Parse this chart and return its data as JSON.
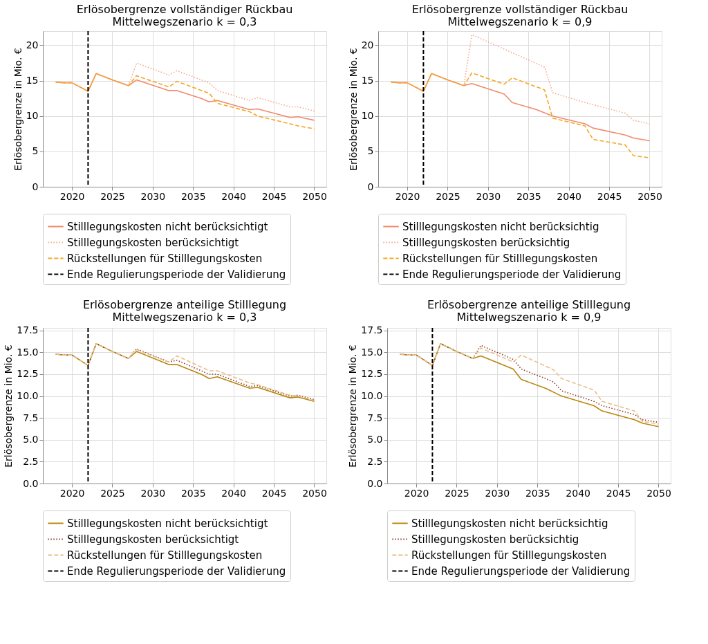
{
  "chart_data": [
    {
      "type": "line",
      "title": "Erlösobergrenze vollständiger Rückbau",
      "subtitle": "Mittelwegszenario k = 0,3",
      "ylabel": "Erlösobergrenze in Mio. €",
      "xlim": [
        2016.4,
        2051.5
      ],
      "ylim": [
        0,
        22
      ],
      "xticks": [
        2020,
        2025,
        2030,
        2035,
        2040,
        2045,
        2050
      ],
      "yticks": [
        0,
        5,
        10,
        15,
        20
      ],
      "grid": true,
      "legend": "bottom",
      "marker": "none",
      "series": [
        {
          "name": "Stilllegungskosten nicht berücksichtigt",
          "color": "#f08a6b",
          "line_style": "solid",
          "x": [
            2018,
            2019,
            2020,
            2022,
            2023,
            2025,
            2027,
            2028,
            2032,
            2033,
            2036,
            2037,
            2038,
            2042,
            2043,
            2047,
            2048,
            2050
          ],
          "values": [
            14.8,
            14.7,
            14.7,
            13.5,
            16.0,
            15.1,
            14.3,
            15.1,
            13.6,
            13.6,
            12.5,
            12.0,
            12.2,
            10.9,
            11.0,
            9.8,
            9.9,
            9.4
          ]
        },
        {
          "name": "Stilllegungskosten berücksichtigt",
          "color": "#f5a58a",
          "line_style": "dotted",
          "x": [
            2018,
            2019,
            2020,
            2022,
            2023,
            2025,
            2027,
            2028,
            2032,
            2033,
            2037,
            2038,
            2042,
            2043,
            2047,
            2048,
            2050
          ],
          "values": [
            14.8,
            14.7,
            14.7,
            13.5,
            16.0,
            15.1,
            14.3,
            17.5,
            15.8,
            16.4,
            14.7,
            13.6,
            12.2,
            12.6,
            11.3,
            11.3,
            10.7
          ]
        },
        {
          "name": "Rückstellungen für Stilllegungskosten",
          "color": "#f5a623",
          "line_style": "dashed",
          "x": [
            2018,
            2019,
            2020,
            2022,
            2023,
            2025,
            2027,
            2028,
            2032,
            2033,
            2037,
            2038,
            2042,
            2043,
            2047,
            2048,
            2050
          ],
          "values": [
            14.8,
            14.7,
            14.7,
            13.5,
            16.0,
            15.1,
            14.3,
            15.7,
            14.1,
            14.9,
            13.2,
            11.8,
            10.6,
            10.0,
            8.9,
            8.6,
            8.2
          ]
        }
      ],
      "ref_lines": [
        {
          "axis": "x",
          "value": 2022,
          "label": "Ende Regulierungsperiode der Validierung",
          "color": "#000000",
          "line_style": "dashed"
        }
      ]
    },
    {
      "type": "line",
      "title": "Erlösobergrenze vollständiger Rückbau",
      "subtitle": "Mittelwegszenario k = 0,9",
      "ylabel": "Erlösobergrenze in Mio. €",
      "xlim": [
        2016.4,
        2051.5
      ],
      "ylim": [
        0,
        22
      ],
      "xticks": [
        2020,
        2025,
        2030,
        2035,
        2040,
        2045,
        2050
      ],
      "yticks": [
        0,
        5,
        10,
        15,
        20
      ],
      "grid": true,
      "legend": "bottom",
      "marker": "none",
      "series": [
        {
          "name": "Stilllegungskosten nicht berücksichtig",
          "color": "#f08a6b",
          "line_style": "solid",
          "x": [
            2018,
            2019,
            2020,
            2022,
            2023,
            2025,
            2027,
            2028,
            2032,
            2033,
            2036,
            2038,
            2042,
            2043,
            2047,
            2048,
            2050
          ],
          "values": [
            14.8,
            14.7,
            14.7,
            13.5,
            16.0,
            15.1,
            14.3,
            14.6,
            13.1,
            11.9,
            10.9,
            10.0,
            8.9,
            8.3,
            7.3,
            6.9,
            6.5
          ]
        },
        {
          "name": "Stilllegungskosten berücksichtig",
          "color": "#f5a58a",
          "line_style": "dotted",
          "x": [
            2018,
            2019,
            2020,
            2022,
            2023,
            2025,
            2027,
            2028,
            2037,
            2038,
            2042,
            2047,
            2048,
            2050
          ],
          "values": [
            14.8,
            14.7,
            14.7,
            13.5,
            16.0,
            15.1,
            14.3,
            21.5,
            16.9,
            13.3,
            11.9,
            10.4,
            9.4,
            8.9
          ]
        },
        {
          "name": "Rückstellungen für Stilllegungskosten",
          "color": "#f5a623",
          "line_style": "dashed",
          "x": [
            2018,
            2019,
            2020,
            2022,
            2023,
            2025,
            2027,
            2028,
            2032,
            2033,
            2037,
            2038,
            2042,
            2043,
            2047,
            2048,
            2050
          ],
          "values": [
            14.8,
            14.7,
            14.7,
            13.5,
            16.0,
            15.1,
            14.3,
            16.1,
            14.5,
            15.4,
            13.7,
            9.7,
            8.6,
            6.7,
            5.9,
            4.4,
            4.1
          ]
        }
      ],
      "ref_lines": [
        {
          "axis": "x",
          "value": 2022,
          "label": "Ende Regulierungsperiode der Validierung",
          "color": "#000000",
          "line_style": "dashed"
        }
      ]
    },
    {
      "type": "line",
      "title": "Erlösobergrenze anteilige Stilllegung",
      "subtitle": "Mittelwegszenario k = 0,3",
      "ylabel": "Erlösobergrenze in Mio. €",
      "xlim": [
        2016.4,
        2051.5
      ],
      "ylim": [
        0,
        17.8
      ],
      "xticks": [
        2020,
        2025,
        2030,
        2035,
        2040,
        2045,
        2050
      ],
      "yticks": [
        {
          "value": 0,
          "label": "0.0"
        },
        2.5,
        {
          "value": 5,
          "label": "5.0"
        },
        7.5,
        {
          "value": 10,
          "label": "10.0"
        },
        12.5,
        {
          "value": 15,
          "label": "15.0"
        },
        17.5
      ],
      "grid": true,
      "legend": "bottom",
      "marker": "none",
      "series": [
        {
          "name": "Stilllegungskosten nicht berücksichtigt",
          "color": "#b8860b",
          "line_style": "solid",
          "x": [
            2018,
            2019,
            2020,
            2022,
            2023,
            2025,
            2027,
            2028,
            2032,
            2033,
            2036,
            2037,
            2038,
            2042,
            2043,
            2047,
            2048,
            2050
          ],
          "values": [
            14.8,
            14.7,
            14.7,
            13.5,
            16.0,
            15.1,
            14.3,
            15.1,
            13.6,
            13.6,
            12.5,
            12.0,
            12.2,
            10.9,
            11.0,
            9.8,
            9.9,
            9.4
          ]
        },
        {
          "name": "Stilllegungskosten berücksichtigt",
          "color": "#8b3a2b",
          "line_style": "dotted",
          "x": [
            2018,
            2019,
            2020,
            2022,
            2023,
            2025,
            2027,
            2028,
            2032,
            2033,
            2037,
            2038,
            2042,
            2043,
            2047,
            2048,
            2050
          ],
          "values": [
            14.8,
            14.7,
            14.7,
            13.5,
            16.0,
            15.1,
            14.3,
            15.4,
            13.9,
            14.1,
            12.5,
            12.5,
            11.1,
            11.2,
            10.0,
            10.1,
            9.6
          ]
        },
        {
          "name": "Rückstellungen für Stilllegungskosten",
          "color": "#e6c08a",
          "line_style": "dashed",
          "x": [
            2018,
            2019,
            2020,
            2022,
            2023,
            2025,
            2027,
            2028,
            2032,
            2033,
            2037,
            2038,
            2042,
            2043,
            2047,
            2048,
            2050
          ],
          "values": [
            14.8,
            14.7,
            14.7,
            13.5,
            16.0,
            15.1,
            14.3,
            15.3,
            13.9,
            14.6,
            12.9,
            12.9,
            11.5,
            11.3,
            10.1,
            10.0,
            9.5
          ]
        }
      ],
      "ref_lines": [
        {
          "axis": "x",
          "value": 2022,
          "label": "Ende Regulierungsperiode der Validierung",
          "color": "#000000",
          "line_style": "dashed"
        }
      ]
    },
    {
      "type": "line",
      "title": "Erlösobergrenze anteilige Stilllegung",
      "subtitle": "Mittelwegszenario k = 0,9",
      "ylabel": "Erlösobergrenze in Mio. €",
      "xlim": [
        2016.4,
        2051.5
      ],
      "ylim": [
        0,
        17.8
      ],
      "xticks": [
        2020,
        2025,
        2030,
        2035,
        2040,
        2045,
        2050
      ],
      "yticks": [
        {
          "value": 0,
          "label": "0.0"
        },
        2.5,
        {
          "value": 5,
          "label": "5.0"
        },
        7.5,
        {
          "value": 10,
          "label": "10.0"
        },
        12.5,
        {
          "value": 15,
          "label": "15.0"
        },
        17.5
      ],
      "grid": true,
      "legend": "bottom",
      "marker": "none",
      "series": [
        {
          "name": "Stilllegungskosten nicht berücksichtig",
          "color": "#b8860b",
          "line_style": "solid",
          "x": [
            2018,
            2019,
            2020,
            2022,
            2023,
            2025,
            2027,
            2028,
            2032,
            2033,
            2036,
            2038,
            2042,
            2043,
            2047,
            2048,
            2050
          ],
          "values": [
            14.8,
            14.7,
            14.7,
            13.5,
            16.0,
            15.1,
            14.3,
            14.6,
            13.1,
            11.9,
            10.9,
            10.0,
            8.9,
            8.3,
            7.3,
            6.9,
            6.5
          ]
        },
        {
          "name": "Stilllegungskosten berücksichtig",
          "color": "#8b3a2b",
          "line_style": "dotted",
          "x": [
            2018,
            2019,
            2020,
            2022,
            2023,
            2025,
            2027,
            2028,
            2032,
            2033,
            2036,
            2037,
            2038,
            2042,
            2043,
            2047,
            2048,
            2050
          ],
          "values": [
            14.8,
            14.7,
            14.7,
            13.5,
            16.0,
            15.1,
            14.3,
            15.8,
            14.2,
            13.1,
            12.0,
            11.6,
            10.6,
            9.4,
            8.9,
            7.9,
            7.3,
            7.0
          ]
        },
        {
          "name": "Rückstellungen für Stilllegungskosten",
          "color": "#e6c08a",
          "line_style": "dashed",
          "x": [
            2018,
            2019,
            2020,
            2022,
            2023,
            2025,
            2027,
            2028,
            2032,
            2033,
            2037,
            2038,
            2042,
            2043,
            2047,
            2048,
            2050
          ],
          "values": [
            14.8,
            14.7,
            14.7,
            13.5,
            16.0,
            15.1,
            14.3,
            15.5,
            13.9,
            14.7,
            13.0,
            12.0,
            10.7,
            9.4,
            8.3,
            7.1,
            6.8
          ]
        }
      ],
      "ref_lines": [
        {
          "axis": "x",
          "value": 2022,
          "label": "Ende Regulierungsperiode der Validierung",
          "color": "#000000",
          "line_style": "dashed"
        }
      ]
    }
  ]
}
